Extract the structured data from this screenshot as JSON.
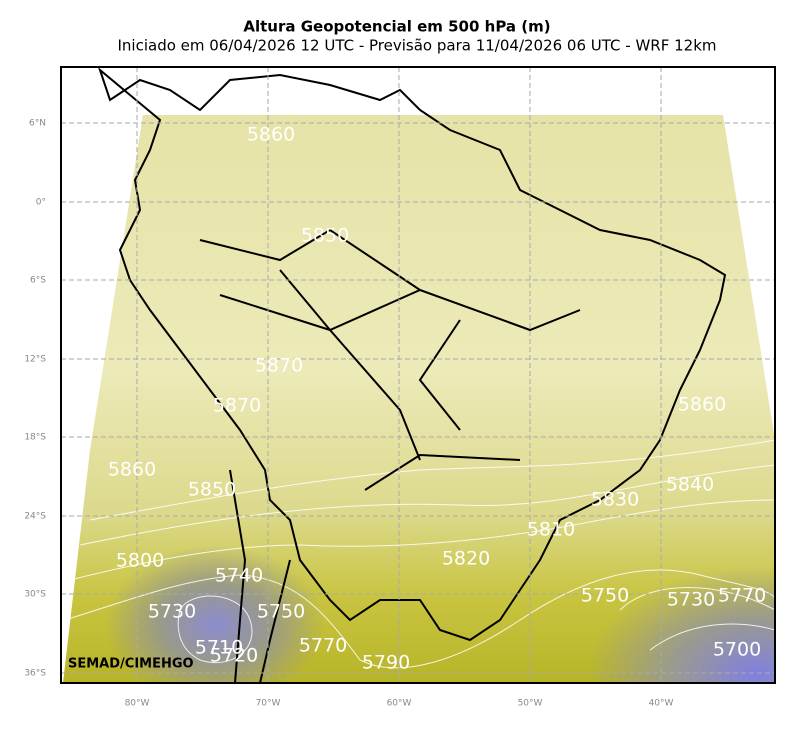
{
  "header": {
    "title": "Altura Geopotencial em 500 hPa (m)",
    "subtitle": "Iniciado em 06/04/2026 12 UTC - Previsão para 11/04/2026 06 UTC - WRF 12km"
  },
  "map": {
    "lat_labels": [
      "6°N",
      "0°",
      "6°S",
      "12°S",
      "18°S",
      "24°S",
      "30°S",
      "36°S"
    ],
    "lon_labels": [
      "80°W",
      "70°W",
      "60°W",
      "50°W",
      "40°W"
    ],
    "contour_labels": [
      "5860",
      "5850",
      "5870",
      "5870",
      "5860",
      "5860",
      "5850",
      "5840",
      "5830",
      "5810",
      "5820",
      "5800",
      "5740",
      "5750",
      "5730",
      "5770",
      "5730",
      "5750",
      "5710",
      "5720",
      "5770",
      "5790",
      "5700"
    ],
    "credit": "SEMAD/CIMEHGO"
  }
}
